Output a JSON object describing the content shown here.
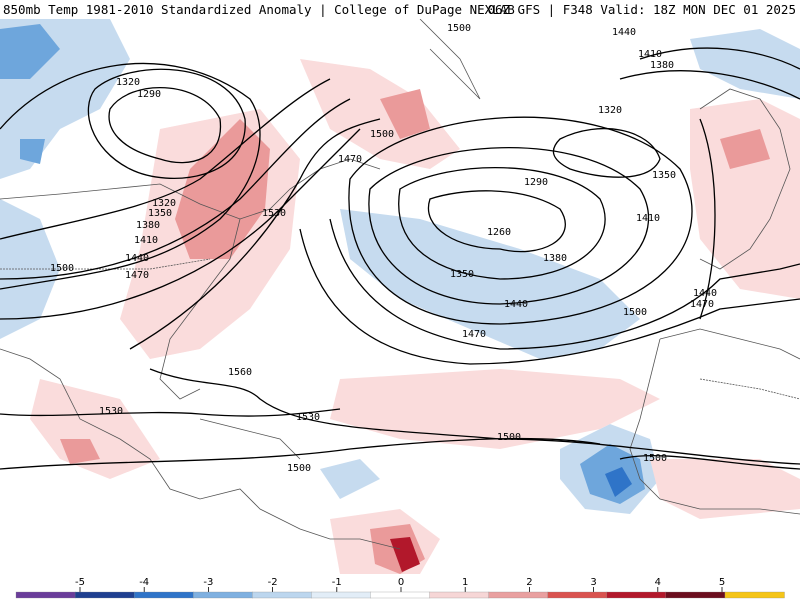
{
  "header": {
    "left": "850mb Temp 1981-2010 Standardized Anomaly | College of DuPage NEXLAB",
    "right": "06Z GFS | F348 Valid: 18Z MON DEC 01 2025"
  },
  "contour_labels": [
    "1500",
    "1440",
    "1410",
    "1380",
    "1320",
    "1290",
    "1500",
    "1470",
    "1530",
    "1320",
    "1350",
    "1380",
    "1410",
    "1440",
    "1500",
    "1470",
    "1320",
    "1290",
    "1260",
    "1350",
    "1410",
    "1380",
    "1350",
    "1440",
    "1470",
    "1500",
    "1440",
    "1470",
    "1560",
    "1530",
    "1530",
    "1500",
    "1500",
    "1500"
  ],
  "colorbar": {
    "ticks": [
      "-5",
      "-4",
      "-3",
      "-2",
      "-1",
      "0",
      "1",
      "2",
      "3",
      "4",
      "5"
    ],
    "colors": [
      "#6a3d9a",
      "#1f3f8f",
      "#2f74c8",
      "#7fb0e0",
      "#bcd6ee",
      "#e2edf7",
      "#ffffff",
      "#f6d6d6",
      "#e9a0a0",
      "#d9534f",
      "#b2182b",
      "#6b0e1e",
      "#f5c518"
    ]
  }
}
